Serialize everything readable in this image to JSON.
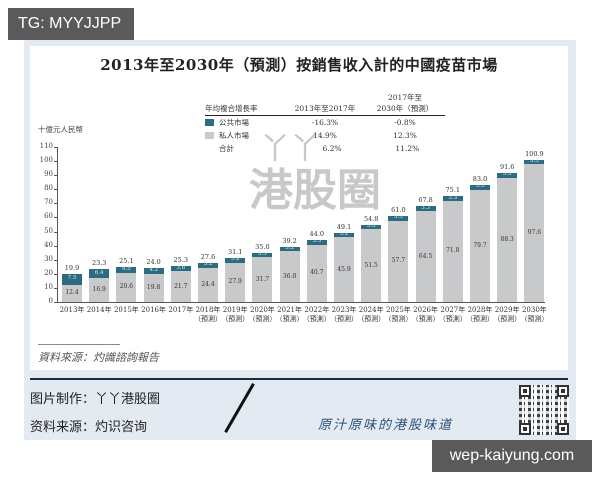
{
  "badges": {
    "tg": "TG: MYYJJPP",
    "site": "wep-kaiyung.com"
  },
  "chart_data": {
    "type": "bar",
    "stacked": true,
    "title": "2013年至2030年（預測）按銷售收入計的中國疫苗市場",
    "ylabel": "十億元人民幣",
    "xlabel": "",
    "ylim": [
      0,
      110
    ],
    "yticks": [
      0,
      10,
      20,
      30,
      40,
      50,
      60,
      70,
      80,
      90,
      100,
      110
    ],
    "grid": false,
    "categories": [
      "2013年",
      "2014年",
      "2015年",
      "2016年",
      "2017年",
      "2018年",
      "2019年",
      "2020年",
      "2021年",
      "2022年",
      "2023年",
      "2024年",
      "2025年",
      "2026年",
      "2027年",
      "2028年",
      "2029年",
      "2030年"
    ],
    "forecast_flags": [
      false,
      false,
      false,
      false,
      false,
      true,
      true,
      true,
      true,
      true,
      true,
      true,
      true,
      true,
      true,
      true,
      true,
      true
    ],
    "forecast_label": "（預測）",
    "series": [
      {
        "name": "私人市場",
        "color": "#c8c9cb",
        "values": [
          12.4,
          16.9,
          20.6,
          19.8,
          21.7,
          24.4,
          27.9,
          31.7,
          36.0,
          40.7,
          45.9,
          51.5,
          57.7,
          64.5,
          71.8,
          79.7,
          88.3,
          97.6
        ]
      },
      {
        "name": "公共市場",
        "color": "#2d6b80",
        "values": [
          7.5,
          6.4,
          4.5,
          4.2,
          3.6,
          3.2,
          3.2,
          3.3,
          3.2,
          3.3,
          3.2,
          3.3,
          3.3,
          3.3,
          3.3,
          3.3,
          3.3,
          3.3
        ]
      }
    ],
    "totals": [
      19.9,
      23.3,
      25.1,
      24.0,
      25.3,
      27.6,
      31.1,
      35.0,
      39.2,
      44.0,
      49.1,
      54.8,
      61.0,
      67.8,
      75.1,
      83.0,
      91.6,
      100.9
    ],
    "legend_position": "top-center table",
    "cagr_table": {
      "header": [
        "年均複合增長率",
        "2013年至2017年",
        "2017年至\n2030年（預測）"
      ],
      "rows": [
        {
          "label": "公共市場",
          "color": "#2d6b80",
          "v1": "-16.3%",
          "v2": "-0.8%"
        },
        {
          "label": "私人市場",
          "color": "#c8c9cb",
          "v1": "14.9%",
          "v2": "12.3%"
        },
        {
          "label": "合計",
          "color": null,
          "v1": "6.2%",
          "v2": "11.2%"
        }
      ]
    }
  },
  "chart": {
    "source_note": "資料來源：灼識諮詢報告",
    "watermark": "港股圈",
    "watermark_mark": "丫丫"
  },
  "footer": {
    "made_by": "图片制作：丫丫港股圈",
    "source": "资料来源：灼识咨询",
    "slogan": "原汁原味的港股味道"
  }
}
